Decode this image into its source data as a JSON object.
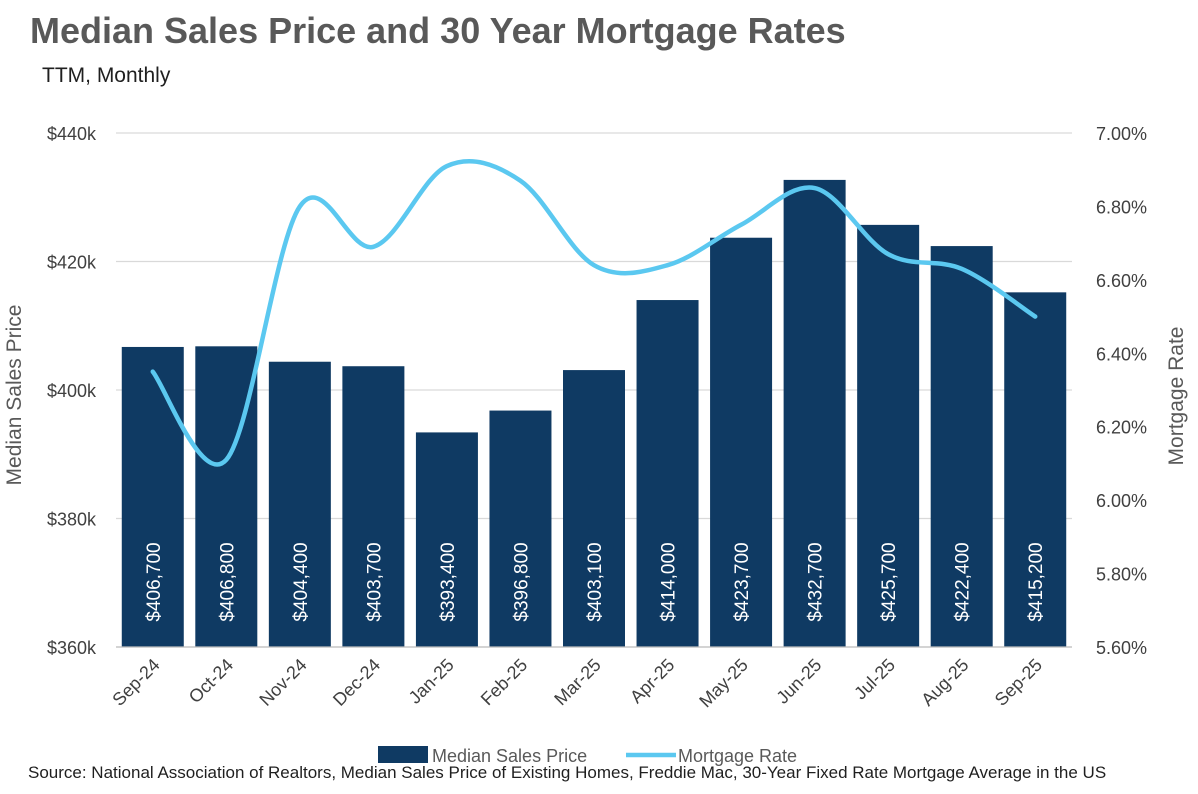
{
  "chart_data": {
    "type": "bar",
    "title": "Median Sales Price and 30 Year Mortgage Rates",
    "subtitle": "TTM, Monthly",
    "source": "Source: National Association of Realtors, Median Sales Price of Existing Homes, Freddie Mac, 30-Year Fixed Rate Mortgage Average in the US",
    "categories": [
      "Sep-24",
      "Oct-24",
      "Nov-24",
      "Dec-24",
      "Jan-25",
      "Feb-25",
      "Mar-25",
      "Apr-25",
      "May-25",
      "Jun-25",
      "Jul-25",
      "Aug-25",
      "Sep-25"
    ],
    "series": [
      {
        "name": "Median Sales Price",
        "type": "bar",
        "axis": "left",
        "color": "#0f3a63",
        "values": [
          406700,
          406800,
          404400,
          403700,
          393400,
          396800,
          403100,
          414000,
          423700,
          432700,
          425700,
          422400,
          415200
        ],
        "labels": [
          "$406,700",
          "$406,800",
          "$404,400",
          "$403,700",
          "$393,400",
          "$396,800",
          "$403,100",
          "$414,000",
          "$423,700",
          "$432,700",
          "$425,700",
          "$422,400",
          "$415,200"
        ]
      },
      {
        "name": "Mortgage Rate",
        "type": "line",
        "axis": "right",
        "color": "#5bc8f0",
        "smooth": true,
        "values": [
          6.35,
          6.11,
          6.8,
          6.69,
          6.91,
          6.87,
          6.64,
          6.64,
          6.75,
          6.85,
          6.67,
          6.63,
          6.5
        ]
      }
    ],
    "y_left": {
      "label": "Median Sales Price",
      "range": [
        360000,
        440000
      ],
      "ticks": [
        360000,
        380000,
        400000,
        420000,
        440000
      ],
      "tick_labels": [
        "$360k",
        "$380k",
        "$400k",
        "$420k",
        "$440k"
      ]
    },
    "y_right": {
      "label": "Mortgage Rate",
      "range": [
        5.6,
        7.0
      ],
      "ticks": [
        5.6,
        5.8,
        6.0,
        6.2,
        6.4,
        6.6,
        6.8,
        7.0
      ],
      "tick_labels": [
        "5.60%",
        "5.80%",
        "6.00%",
        "6.20%",
        "6.40%",
        "6.60%",
        "6.80%",
        "7.00%"
      ]
    },
    "grid": true,
    "legend_position": "bottom"
  }
}
